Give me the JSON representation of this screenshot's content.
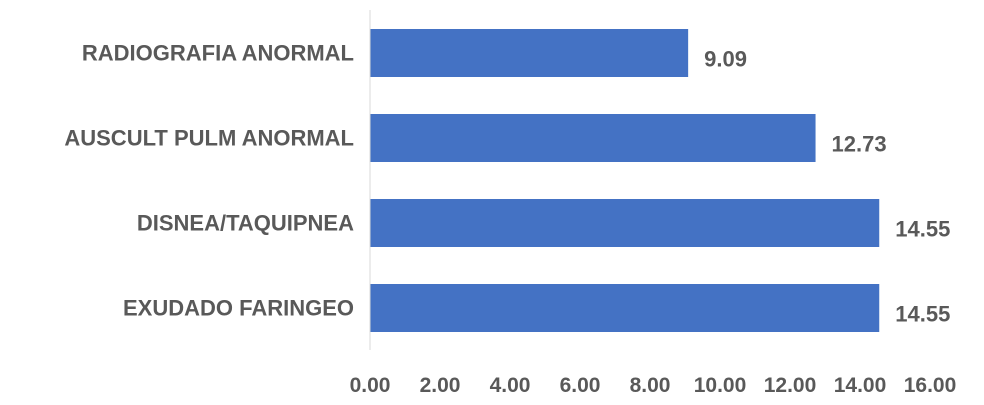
{
  "chart_data": {
    "type": "bar",
    "orientation": "horizontal",
    "categories": [
      "RADIOGRAFIA ANORMAL",
      "AUSCULT PULM ANORMAL",
      "DISNEA/TAQUIPNEA",
      "EXUDADO FARINGEO"
    ],
    "values": [
      9.09,
      12.73,
      14.55,
      14.55
    ],
    "data_labels": [
      "9.09",
      "12.73",
      "14.55",
      "14.55"
    ],
    "xlim": [
      0,
      16
    ],
    "x_ticks": [
      0,
      2,
      4,
      6,
      8,
      10,
      12,
      14,
      16
    ],
    "x_tick_labels": [
      "0.00",
      "2.00",
      "4.00",
      "6.00",
      "8.00",
      "10.00",
      "12.00",
      "14.00",
      "16.00"
    ],
    "bar_color": "#4472C4",
    "text_color": "#595959",
    "axis_color": "#D9D9D9",
    "grid": false,
    "legend": "none"
  }
}
